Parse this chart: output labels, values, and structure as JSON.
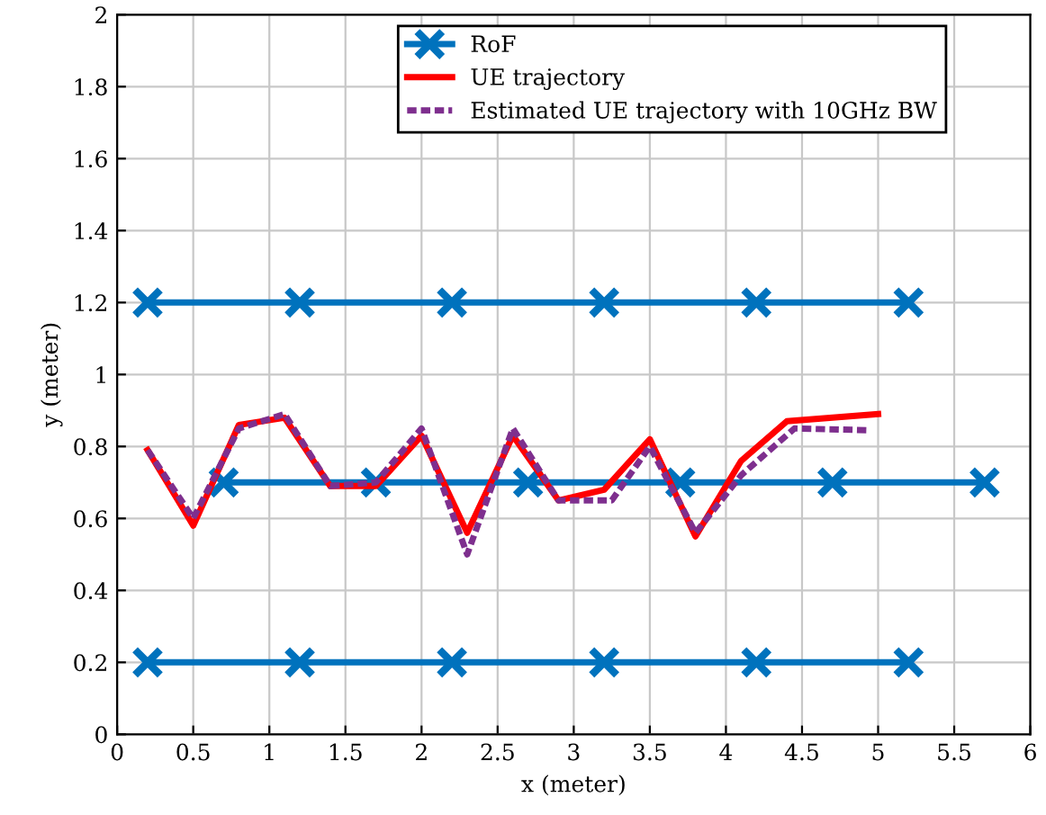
{
  "chart_data": {
    "type": "line",
    "xlabel": "x (meter)",
    "ylabel": "y (meter)",
    "xlim": [
      0,
      6
    ],
    "ylim": [
      0,
      2
    ],
    "xticks": [
      0,
      0.5,
      1,
      1.5,
      2,
      2.5,
      3,
      3.5,
      4,
      4.5,
      5,
      5.5,
      6
    ],
    "yticks": [
      0,
      0.2,
      0.4,
      0.6,
      0.8,
      1,
      1.2,
      1.4,
      1.6,
      1.8,
      2
    ],
    "grid": true,
    "legend": "top right",
    "series": [
      {
        "name": "RoF",
        "color": "#0072bd",
        "marker": "cross",
        "line_style": "solid",
        "x": [
          0.2,
          1.2,
          2.2,
          3.2,
          4.2,
          5.2
        ],
        "values": [
          1.2,
          1.2,
          1.2,
          1.2,
          1.2,
          1.2
        ]
      },
      {
        "color": "#0072bd",
        "marker": "cross",
        "line_style": "solid",
        "x": [
          0.7,
          1.7,
          2.7,
          3.7,
          4.7,
          5.7
        ],
        "values": [
          0.7,
          0.7,
          0.7,
          0.7,
          0.7,
          0.7
        ]
      },
      {
        "color": "#0072bd",
        "marker": "cross",
        "line_style": "solid",
        "x": [
          0.2,
          1.2,
          2.2,
          3.2,
          4.2,
          5.2
        ],
        "values": [
          0.2,
          0.2,
          0.2,
          0.2,
          0.2,
          0.2
        ]
      },
      {
        "name": "UE trajectory",
        "color": "#ff0000",
        "marker": "none",
        "line_style": "solid",
        "x": [
          0.2,
          0.5,
          0.8,
          1.1,
          1.4,
          1.7,
          2.0,
          2.3,
          2.6,
          2.9,
          3.2,
          3.5,
          3.8,
          4.1,
          4.4,
          5.0
        ],
        "values": [
          0.79,
          0.58,
          0.86,
          0.88,
          0.69,
          0.69,
          0.83,
          0.56,
          0.83,
          0.65,
          0.68,
          0.82,
          0.55,
          0.76,
          0.87,
          0.89
        ]
      },
      {
        "name": "Estimated UE trajectory with 10GHz BW",
        "color": "#7e2f8e",
        "marker": "none",
        "line_style": "dotted",
        "x": [
          0.2,
          0.5,
          0.8,
          1.1,
          1.4,
          1.7,
          2.0,
          2.3,
          2.6,
          2.9,
          3.25,
          3.5,
          3.8,
          4.1,
          4.45,
          4.95
        ],
        "values": [
          0.79,
          0.6,
          0.85,
          0.89,
          0.69,
          0.7,
          0.85,
          0.5,
          0.85,
          0.65,
          0.65,
          0.8,
          0.56,
          0.72,
          0.85,
          0.845
        ]
      }
    ]
  }
}
